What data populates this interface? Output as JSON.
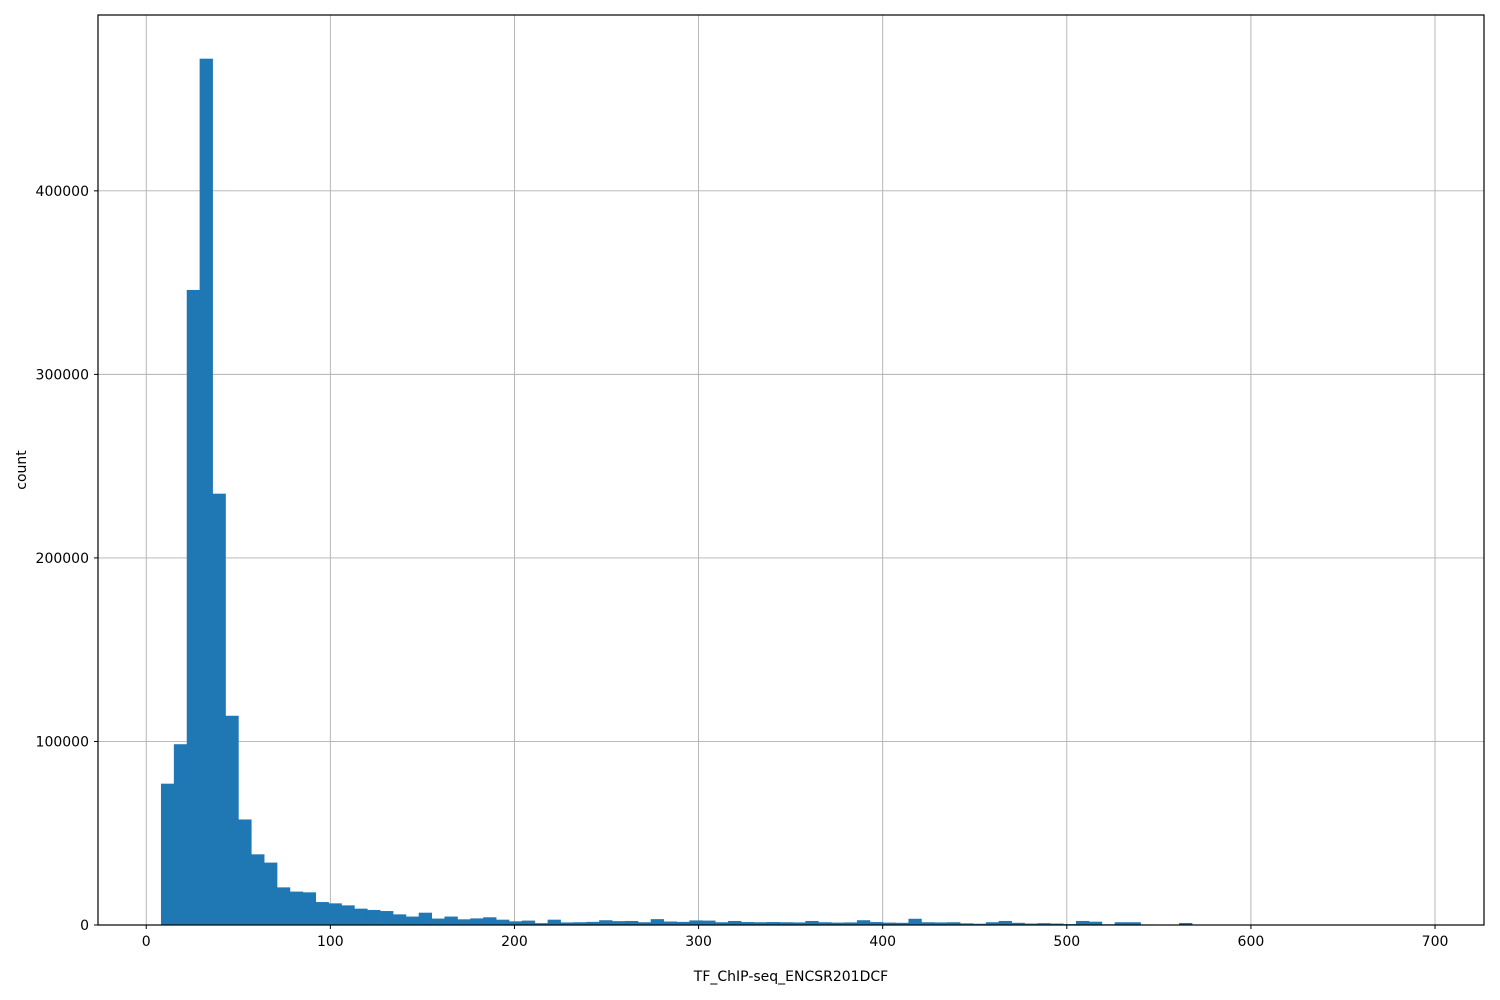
{
  "chart_data": {
    "type": "bar",
    "chart_kind": "histogram",
    "title": "",
    "xlabel": "TF_ChIP-seq_ENCSR201DCF",
    "ylabel": "count",
    "bar_color": "#1f77b4",
    "background_color": "#ffffff",
    "grid": true,
    "grid_color": "#b0b0b0",
    "axis_color": "#000000",
    "legend_position": "none",
    "xlim": [
      -26.2,
      726.6
    ],
    "ylim": [
      0,
      495800
    ],
    "x_ticks": [
      0,
      100,
      200,
      300,
      400,
      500,
      600,
      700
    ],
    "y_ticks": [
      0,
      100000,
      200000,
      300000,
      400000
    ],
    "bins": {
      "start": 8,
      "width": 7,
      "counts": [
        77000,
        98500,
        346000,
        472000,
        235000,
        114000,
        57500,
        38500,
        34000,
        20500,
        18200,
        17800,
        12500,
        11800,
        10700,
        8900,
        8200,
        7600,
        5800,
        4600,
        6700,
        3500,
        4600,
        3100,
        3600,
        4200,
        2900,
        2000,
        2400,
        1000,
        2900,
        1400,
        1500,
        1700,
        2600,
        2100,
        2200,
        1500,
        3200,
        1900,
        1700,
        2500,
        2400,
        1500,
        2200,
        1600,
        1500,
        1600,
        1500,
        1400,
        2200,
        1500,
        1300,
        1400,
        2600,
        1600,
        1300,
        1200,
        3400,
        1500,
        1400,
        1500,
        900,
        700,
        1500,
        2200,
        1200,
        800,
        1000,
        800,
        500,
        2200,
        1800,
        400,
        1500,
        1500,
        300,
        200,
        150,
        1100
      ]
    }
  }
}
